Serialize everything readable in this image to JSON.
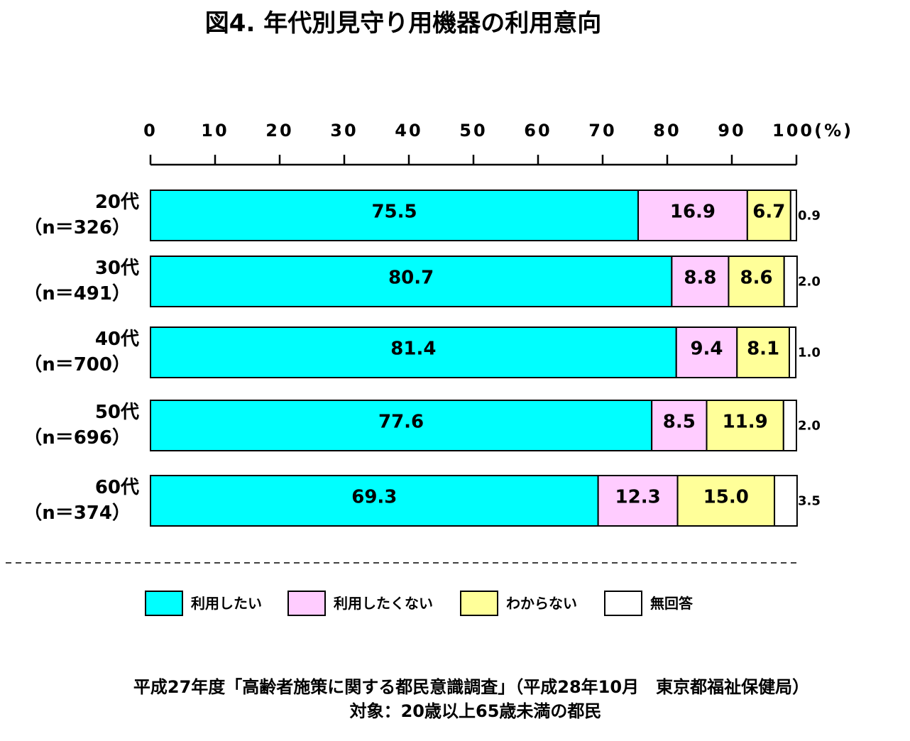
{
  "chart_data": {
    "type": "bar",
    "orientation": "horizontal",
    "stacked": true,
    "title": "図4. 年代別見守り用機器の利用意向",
    "xlim": [
      0,
      100
    ],
    "x_ticks": [
      "0",
      "10",
      "20",
      "30",
      "40",
      "50",
      "60",
      "70",
      "80",
      "90",
      "100(%)"
    ],
    "categories": [
      {
        "line1": "20代",
        "line2": "（n＝326）"
      },
      {
        "line1": "30代",
        "line2": "（n＝491）"
      },
      {
        "line1": "40代",
        "line2": "（n＝700）"
      },
      {
        "line1": "50代",
        "line2": "（n＝696）"
      },
      {
        "line1": "60代",
        "line2": "（n＝374）"
      }
    ],
    "series": [
      {
        "name": "利用したい",
        "color": "#00ffff",
        "values": [
          75.5,
          80.7,
          81.4,
          77.6,
          69.3
        ],
        "labels": [
          "75.5",
          "80.7",
          "81.4",
          "77.6",
          "69.3"
        ]
      },
      {
        "name": "利用したくない",
        "color": "#ffccff",
        "values": [
          16.9,
          8.8,
          9.4,
          8.5,
          12.3
        ],
        "labels": [
          "16.9",
          "8.8",
          "9.4",
          "8.5",
          "12.3"
        ]
      },
      {
        "name": "わからない",
        "color": "#ffff99",
        "values": [
          6.7,
          8.6,
          8.1,
          11.9,
          15.0
        ],
        "labels": [
          "6.7",
          "8.6",
          "8.1",
          "11.9",
          "15.0"
        ]
      },
      {
        "name": "無回答",
        "color": "#ffffff",
        "values": [
          0.9,
          2.0,
          1.0,
          2.0,
          3.5
        ],
        "labels": [
          "0.9",
          "2.0",
          "1.0",
          "2.0",
          "3.5"
        ]
      }
    ],
    "grid": false,
    "legend_position": "bottom"
  },
  "footer": {
    "source": "平成27年度「高齢者施策に関する都民意識調査」（平成28年10月　東京都福祉保健局）",
    "target": "対象：20歳以上65歳未満の都民"
  }
}
